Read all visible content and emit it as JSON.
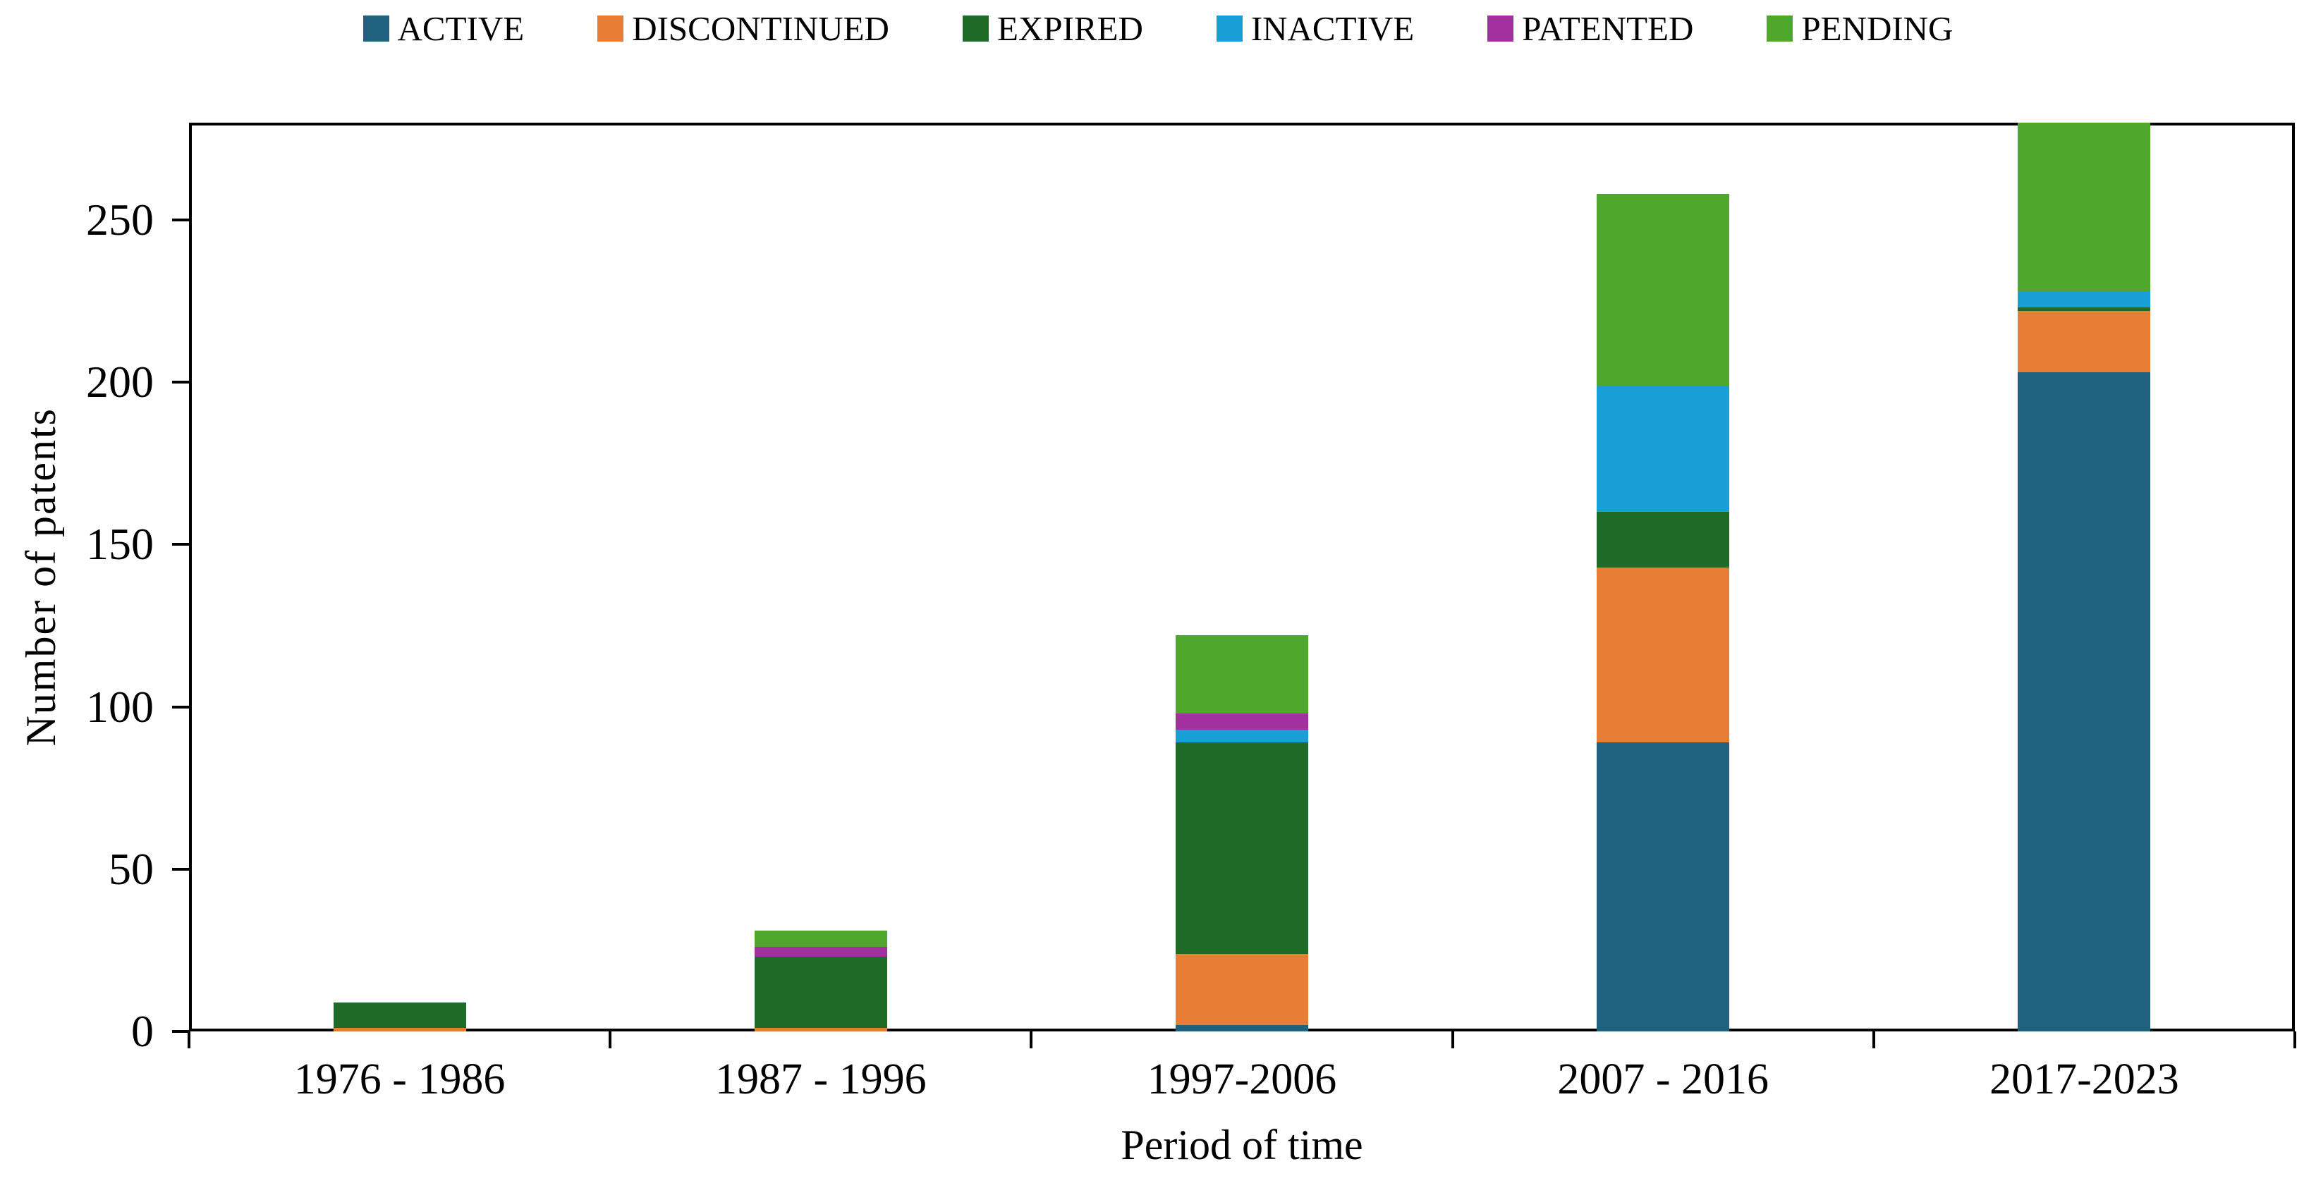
{
  "chart_data": {
    "type": "bar",
    "stacked": true,
    "title": "",
    "xlabel": "Period of time",
    "ylabel": "Number of patents",
    "categories": [
      "1976 - 1986",
      "1987 - 1996",
      "1997-2006",
      "2007 - 2016",
      "2017-2023"
    ],
    "series": [
      {
        "name": "ACTIVE",
        "color": "#1F617E",
        "values": [
          0,
          0,
          2,
          89,
          203
        ]
      },
      {
        "name": "DISCONTINUED",
        "color": "#E87D35",
        "values": [
          1,
          1,
          22,
          54,
          19
        ]
      },
      {
        "name": "EXPIRED",
        "color": "#1E6B27",
        "values": [
          8,
          22,
          65,
          17,
          1
        ]
      },
      {
        "name": "INACTIVE",
        "color": "#199FD8",
        "values": [
          0,
          0,
          4,
          39,
          5
        ]
      },
      {
        "name": "PATENTED",
        "color": "#A3309F",
        "values": [
          0,
          3,
          5,
          0,
          0
        ]
      },
      {
        "name": "PENDING",
        "color": "#4FA72C",
        "values": [
          0,
          5,
          24,
          59,
          52
        ]
      }
    ],
    "totals": [
      9,
      31,
      122,
      258,
      280
    ],
    "ylim": [
      0,
      280
    ],
    "yticks": [
      0,
      50,
      100,
      150,
      200,
      250
    ],
    "grid": false,
    "legend_position": "top",
    "axis_color": "#000000"
  }
}
